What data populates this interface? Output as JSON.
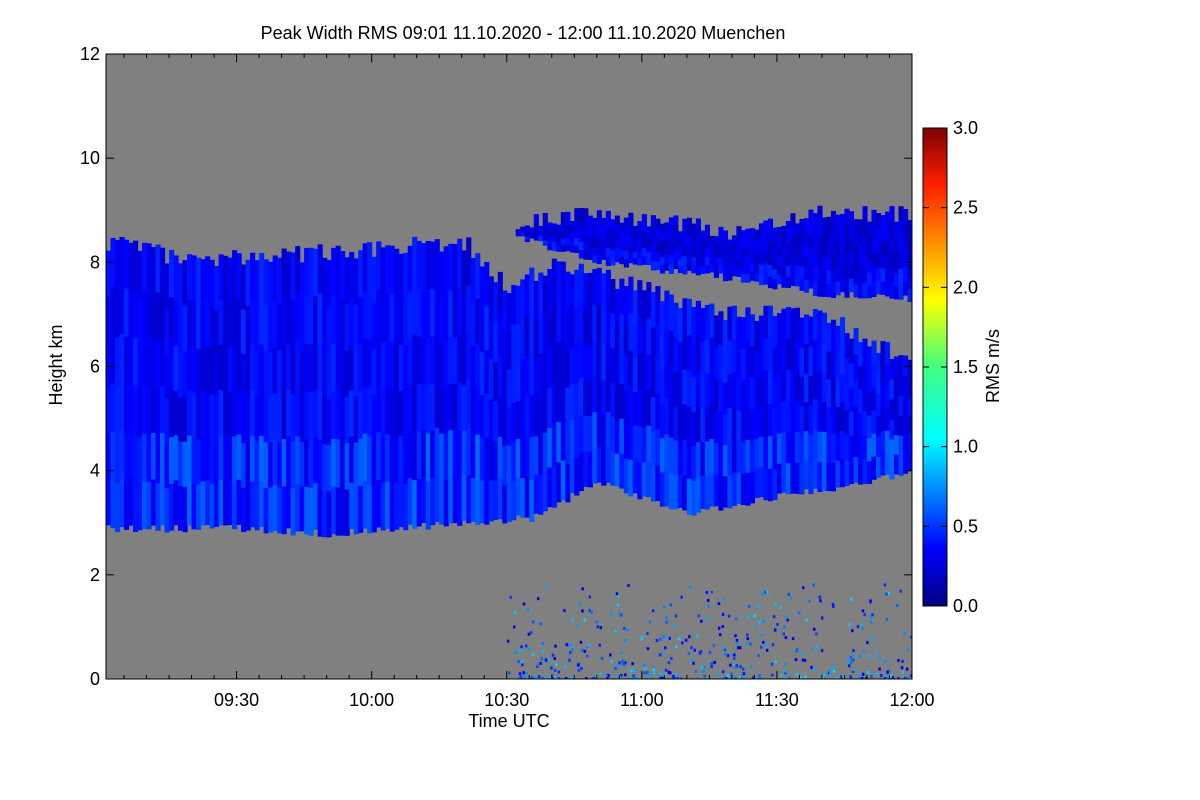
{
  "chart_data": {
    "type": "heatmap",
    "title": "Peak Width RMS   09:01 11.10.2020 - 12:00 11.10.2020 Muenchen",
    "xlabel": "Time UTC",
    "ylabel": "Height km",
    "x_range": [
      "09:01",
      "12:00"
    ],
    "y_range_km": [
      0,
      12
    ],
    "x_ticks": [
      "09:30",
      "10:00",
      "10:30",
      "11:00",
      "11:30",
      "12:00"
    ],
    "x_tick_minutes": [
      30,
      60,
      90,
      120,
      150,
      180
    ],
    "y_ticks": [
      "0",
      "2",
      "4",
      "6",
      "8",
      "10",
      "12"
    ],
    "colorbar": {
      "label": "RMS m/s",
      "range": [
        0.0,
        3.0
      ],
      "ticks": [
        "0.0",
        "0.5",
        "1.0",
        "1.5",
        "2.0",
        "2.5",
        "3.0"
      ],
      "colormap": "rainbow (dark blue to dark red)"
    },
    "colors": {
      "no_data": "#808080",
      "dominant_value": "#1a1aff"
    },
    "regions": [
      {
        "name": "main cloud layer",
        "rms_typical_ms": 0.4,
        "top_km": [
          [
            1,
            8.4
          ],
          [
            20,
            8.0
          ],
          [
            50,
            8.2
          ],
          [
            80,
            8.4
          ],
          [
            90,
            7.5
          ],
          [
            100,
            8.0
          ],
          [
            120,
            7.5
          ],
          [
            140,
            7.0
          ],
          [
            160,
            7.0
          ],
          [
            180,
            6.0
          ]
        ],
        "bottom_km": [
          [
            1,
            2.9
          ],
          [
            30,
            2.9
          ],
          [
            50,
            2.8
          ],
          [
            80,
            3.0
          ],
          [
            95,
            3.1
          ],
          [
            110,
            3.8
          ],
          [
            130,
            3.2
          ],
          [
            150,
            3.5
          ],
          [
            170,
            3.8
          ],
          [
            180,
            4.0
          ]
        ]
      },
      {
        "name": "upper cloud band",
        "rms_typical_ms": 0.3,
        "top_km": [
          [
            92,
            8.8
          ],
          [
            110,
            8.9
          ],
          [
            140,
            8.6
          ],
          [
            160,
            9.0
          ],
          [
            180,
            8.9
          ]
        ],
        "bottom_km": [
          [
            92,
            8.5
          ],
          [
            110,
            8.0
          ],
          [
            140,
            7.7
          ],
          [
            160,
            7.4
          ],
          [
            180,
            7.3
          ]
        ]
      },
      {
        "name": "boundary-layer echoes",
        "rms_typical_ms": 0.6,
        "time_range_min": [
          90,
          180
        ],
        "height_range_km": [
          0,
          1.8
        ]
      }
    ]
  }
}
